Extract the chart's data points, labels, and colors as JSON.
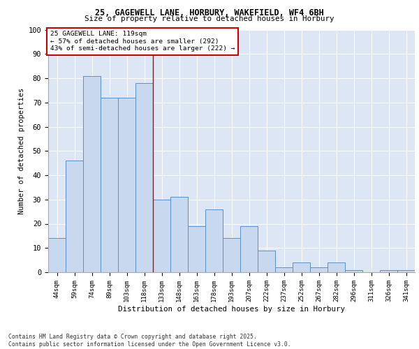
{
  "title_line1": "25, GAGEWELL LANE, HORBURY, WAKEFIELD, WF4 6BH",
  "title_line2": "Size of property relative to detached houses in Horbury",
  "xlabel": "Distribution of detached houses by size in Horbury",
  "ylabel": "Number of detached properties",
  "bar_labels": [
    "44sqm",
    "59sqm",
    "74sqm",
    "89sqm",
    "103sqm",
    "118sqm",
    "133sqm",
    "148sqm",
    "163sqm",
    "178sqm",
    "193sqm",
    "207sqm",
    "222sqm",
    "237sqm",
    "252sqm",
    "267sqm",
    "282sqm",
    "296sqm",
    "311sqm",
    "326sqm",
    "341sqm"
  ],
  "bar_values": [
    14,
    46,
    81,
    72,
    72,
    78,
    30,
    31,
    19,
    26,
    14,
    19,
    9,
    2,
    4,
    2,
    4,
    1,
    0,
    1,
    1
  ],
  "bar_color": "#c8d8ee",
  "bar_edge_color": "#5b8fc9",
  "marker_line_index": 5,
  "marker_label": "25 GAGEWELL LANE: 119sqm",
  "marker_text_line2": "← 57% of detached houses are smaller (292)",
  "marker_text_line3": "43% of semi-detached houses are larger (222) →",
  "annotation_box_color": "#cc0000",
  "ylim": [
    0,
    100
  ],
  "yticks": [
    0,
    10,
    20,
    30,
    40,
    50,
    60,
    70,
    80,
    90,
    100
  ],
  "footer_line1": "Contains HM Land Registry data © Crown copyright and database right 2025.",
  "footer_line2": "Contains public sector information licensed under the Open Government Licence v3.0.",
  "bg_color": "#dce6f4",
  "plot_bg_color": "#dce6f4"
}
